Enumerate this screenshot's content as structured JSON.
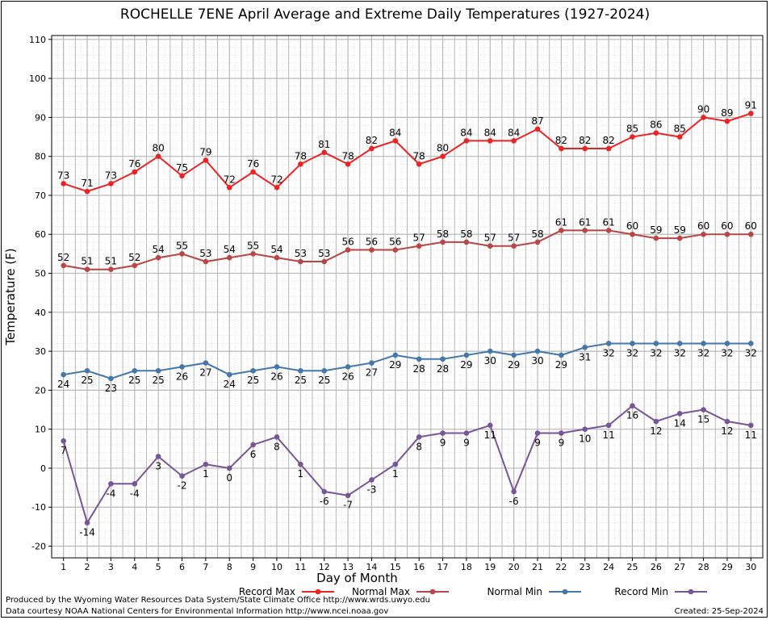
{
  "title": "ROCHELLE 7ENE April Average and Extreme Daily Temperatures (1927-2024)",
  "footer": {
    "produced_by": "Produced by the Wyoming Water Resources Data System/State Climate Office http://www.wrds.uwyo.edu",
    "courtesy": "Data courtesy NOAA National Centers for Environmental Information http://www.ncei.noaa.gov",
    "created": "Created:  25-Sep-2024"
  },
  "colors": {
    "record_max": "#ee2222",
    "normal_max": "#bb4444",
    "normal_min": "#4477aa",
    "record_min": "#775599",
    "grid_major": "#b8b8b8",
    "grid_minor": "#d0d0d0"
  },
  "chart_data": {
    "type": "line",
    "title": "ROCHELLE 7ENE April Average and Extreme Daily Temperatures (1927-2024)",
    "xlabel": "Day of Month",
    "ylabel": "Temperature (F)",
    "xlim": [
      0.5,
      30.5
    ],
    "ylim": [
      -23,
      111
    ],
    "yticks": [
      -20,
      -10,
      0,
      10,
      20,
      30,
      40,
      50,
      60,
      70,
      80,
      90,
      100,
      110
    ],
    "x": [
      1,
      2,
      3,
      4,
      5,
      6,
      7,
      8,
      9,
      10,
      11,
      12,
      13,
      14,
      15,
      16,
      17,
      18,
      19,
      20,
      21,
      22,
      23,
      24,
      25,
      26,
      27,
      28,
      29,
      30
    ],
    "grid": true,
    "legend_position": "bottom",
    "series": [
      {
        "name": "Record Max",
        "color": "#ee2222",
        "label_pos": "above",
        "values": [
          73,
          71,
          73,
          76,
          80,
          75,
          79,
          72,
          76,
          72,
          78,
          81,
          78,
          82,
          84,
          78,
          80,
          84,
          84,
          84,
          87,
          82,
          82,
          82,
          85,
          86,
          85,
          90,
          89,
          91
        ]
      },
      {
        "name": "Normal Max",
        "color": "#bb4444",
        "label_pos": "above",
        "values": [
          52,
          51,
          51,
          52,
          54,
          55,
          53,
          54,
          55,
          54,
          53,
          53,
          56,
          56,
          56,
          57,
          58,
          58,
          57,
          57,
          58,
          61,
          61,
          61,
          60,
          59,
          59,
          60,
          60,
          60
        ]
      },
      {
        "name": "Normal Min",
        "color": "#4477aa",
        "label_pos": "below",
        "values": [
          24,
          25,
          23,
          25,
          25,
          26,
          27,
          24,
          25,
          26,
          25,
          25,
          26,
          27,
          29,
          28,
          28,
          29,
          30,
          29,
          30,
          29,
          31,
          32,
          32,
          32,
          32,
          32,
          32,
          32
        ]
      },
      {
        "name": "Record Min",
        "color": "#775599",
        "label_pos": "below",
        "values": [
          7,
          -14,
          -4,
          -4,
          3,
          -2,
          1,
          0,
          6,
          8,
          1,
          -6,
          -7,
          -3,
          1,
          8,
          9,
          9,
          11,
          -6,
          9,
          9,
          10,
          11,
          16,
          12,
          14,
          15,
          12,
          11
        ]
      }
    ]
  }
}
